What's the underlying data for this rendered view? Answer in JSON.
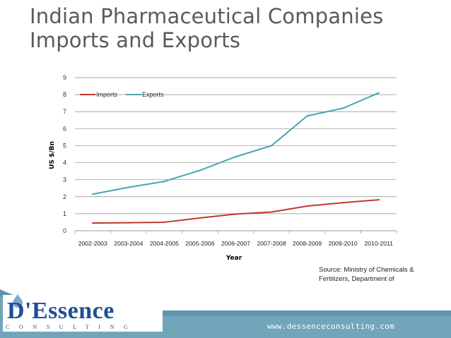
{
  "slide": {
    "title_line1": "Indian Pharmaceutical Companies",
    "title_line2": "Imports and Exports",
    "source_text": "Source: Ministry of Chemicals & Fertilizers, Department of",
    "website": "www.dessenceconsulting.com"
  },
  "logo": {
    "word": "D'Essence",
    "subtitle": "CONSULTING"
  },
  "colors": {
    "title": "#5a5a5a",
    "imports": "#c0392b",
    "exports": "#4aa3b5",
    "footer": "#5f95ad",
    "brand": "#1f4e94"
  },
  "chart_data": {
    "type": "line",
    "title": "",
    "xlabel": "Year",
    "ylabel": "US $/Bn",
    "ylim": [
      0,
      9
    ],
    "yticks": [
      0,
      1,
      2,
      3,
      4,
      5,
      6,
      7,
      8,
      9
    ],
    "grid": true,
    "legend_position": "top-left",
    "categories": [
      "2002-2003",
      "2003-2004",
      "2004-2005",
      "2005-2006",
      "2006-2007",
      "2007-2008",
      "2008-2009",
      "2009-2010",
      "2010-2011"
    ],
    "series": [
      {
        "name": "Imports",
        "color": "#c0392b",
        "values": [
          0.45,
          0.47,
          0.5,
          0.75,
          0.98,
          1.1,
          1.45,
          1.65,
          1.82
        ]
      },
      {
        "name": "Exports",
        "color": "#4aa3b5",
        "values": [
          2.15,
          2.55,
          2.9,
          3.55,
          4.35,
          5.0,
          6.75,
          7.2,
          8.1
        ]
      }
    ]
  }
}
